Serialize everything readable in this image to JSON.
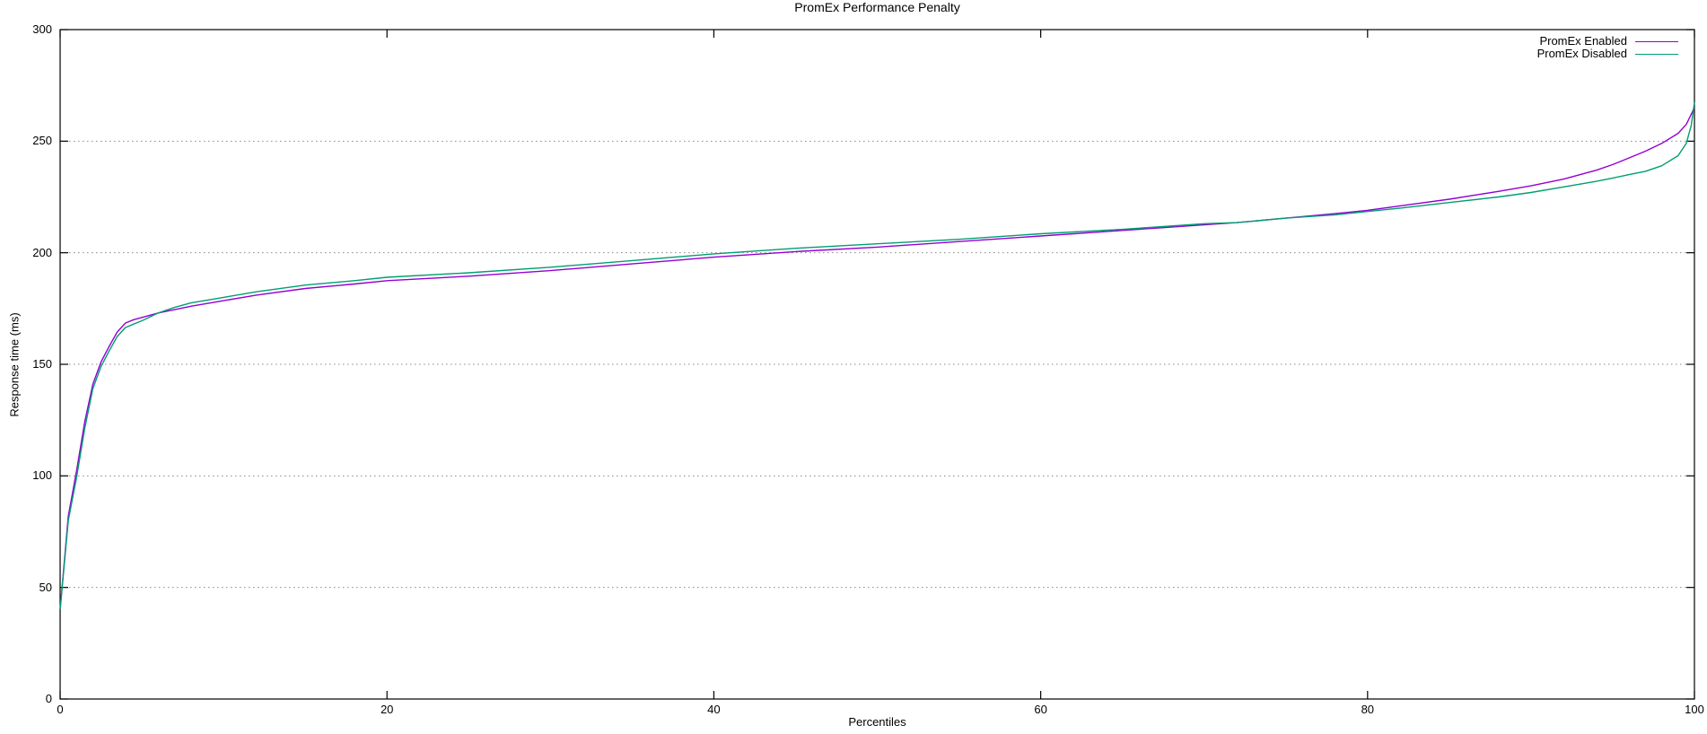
{
  "chart_data": {
    "type": "line",
    "title": "PromEx Performance Penalty",
    "xlabel": "Percentiles",
    "ylabel": "Response time (ms)",
    "xlim": [
      0,
      100
    ],
    "ylim": [
      0,
      300
    ],
    "x_ticks": [
      0,
      20,
      40,
      60,
      80,
      100
    ],
    "y_ticks": [
      0,
      50,
      100,
      150,
      200,
      250,
      300
    ],
    "grid": {
      "horizontal_dotted": true,
      "vertical": false,
      "color": "#888888"
    },
    "frame_color": "#000000",
    "legend_position": "top-right-inside",
    "series": [
      {
        "name": "PromEx Enabled",
        "color": "#9400d3",
        "points": [
          [
            0,
            40
          ],
          [
            0.5,
            82
          ],
          [
            1,
            102
          ],
          [
            1.5,
            124
          ],
          [
            2,
            141
          ],
          [
            2.5,
            151
          ],
          [
            3,
            158
          ],
          [
            3.5,
            164.5
          ],
          [
            4,
            168.5
          ],
          [
            4.5,
            170
          ],
          [
            5,
            171
          ],
          [
            6,
            173
          ],
          [
            7,
            174.5
          ],
          [
            8,
            176
          ],
          [
            10,
            178.5
          ],
          [
            12,
            181
          ],
          [
            15,
            184
          ],
          [
            18,
            186
          ],
          [
            20,
            187.5
          ],
          [
            25,
            189.5
          ],
          [
            30,
            192
          ],
          [
            35,
            195
          ],
          [
            40,
            198
          ],
          [
            45,
            200.5
          ],
          [
            50,
            202.5
          ],
          [
            55,
            205
          ],
          [
            60,
            207.5
          ],
          [
            65,
            210
          ],
          [
            70,
            212.5
          ],
          [
            72,
            213.5
          ],
          [
            75,
            215.5
          ],
          [
            78,
            217.5
          ],
          [
            80,
            219
          ],
          [
            82,
            221
          ],
          [
            85,
            224
          ],
          [
            88,
            227.5
          ],
          [
            90,
            230
          ],
          [
            92,
            233
          ],
          [
            94,
            237
          ],
          [
            95,
            239.5
          ],
          [
            96,
            242.5
          ],
          [
            97,
            245.5
          ],
          [
            98,
            249
          ],
          [
            99,
            253.5
          ],
          [
            99.5,
            257.5
          ],
          [
            100,
            265
          ]
        ]
      },
      {
        "name": "PromEx Disabled",
        "color": "#009e73",
        "points": [
          [
            0,
            40
          ],
          [
            0.5,
            80
          ],
          [
            1,
            99
          ],
          [
            1.5,
            121
          ],
          [
            2,
            139
          ],
          [
            2.5,
            149
          ],
          [
            3,
            156
          ],
          [
            3.5,
            162.5
          ],
          [
            4,
            166.5
          ],
          [
            4.5,
            168
          ],
          [
            5,
            169.5
          ],
          [
            6,
            173
          ],
          [
            7,
            175.5
          ],
          [
            8,
            177.5
          ],
          [
            10,
            180
          ],
          [
            12,
            182.5
          ],
          [
            15,
            185.5
          ],
          [
            18,
            187.5
          ],
          [
            20,
            189
          ],
          [
            25,
            191
          ],
          [
            30,
            193.5
          ],
          [
            35,
            196.5
          ],
          [
            40,
            199.5
          ],
          [
            45,
            202
          ],
          [
            50,
            204
          ],
          [
            55,
            206
          ],
          [
            60,
            208.5
          ],
          [
            65,
            210.5
          ],
          [
            70,
            213
          ],
          [
            72,
            213.5
          ],
          [
            75,
            215.5
          ],
          [
            78,
            217
          ],
          [
            80,
            218.5
          ],
          [
            82,
            220
          ],
          [
            85,
            222.5
          ],
          [
            88,
            225
          ],
          [
            90,
            227
          ],
          [
            92,
            229.5
          ],
          [
            94,
            232
          ],
          [
            95,
            233.5
          ],
          [
            96,
            235
          ],
          [
            97,
            236.5
          ],
          [
            98,
            239
          ],
          [
            99,
            243.5
          ],
          [
            99.5,
            249
          ],
          [
            99.8,
            257
          ],
          [
            100,
            267.5
          ]
        ]
      }
    ]
  }
}
